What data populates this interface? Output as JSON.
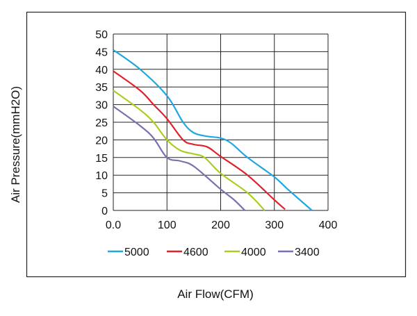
{
  "chart_data": {
    "type": "line",
    "title": "",
    "xlabel": "Air Flow(CFM)",
    "ylabel": "Air Pressure(mmH2O)",
    "xlim": [
      0,
      400
    ],
    "ylim": [
      0,
      50
    ],
    "grid": true,
    "x_ticks": [
      "0.0",
      "100",
      "200",
      "300",
      "400"
    ],
    "x_tick_values": [
      0,
      100,
      200,
      300,
      400
    ],
    "y_ticks": [
      "0",
      "5",
      "10",
      "15",
      "20",
      "25",
      "30",
      "35",
      "40",
      "45",
      "50"
    ],
    "y_tick_values": [
      0,
      5,
      10,
      15,
      20,
      25,
      30,
      35,
      40,
      45,
      50
    ],
    "legend_position": "bottom",
    "series": [
      {
        "name": "5000",
        "color": "#1ea7e1",
        "points": [
          [
            0,
            45.5
          ],
          [
            50,
            40
          ],
          [
            100,
            32.5
          ],
          [
            130,
            25
          ],
          [
            150,
            22
          ],
          [
            175,
            21
          ],
          [
            200,
            20.5
          ],
          [
            220,
            19
          ],
          [
            250,
            15
          ],
          [
            300,
            9.5
          ],
          [
            325,
            6
          ],
          [
            370,
            0
          ]
        ]
      },
      {
        "name": "4600",
        "color": "#e0202a",
        "points": [
          [
            0,
            39.5
          ],
          [
            50,
            34
          ],
          [
            75,
            30
          ],
          [
            100,
            26
          ],
          [
            130,
            20
          ],
          [
            150,
            18.7
          ],
          [
            175,
            18
          ],
          [
            200,
            15.3
          ],
          [
            250,
            10
          ],
          [
            300,
            3
          ],
          [
            320,
            0.3
          ]
        ]
      },
      {
        "name": "4000",
        "color": "#a8cf1f",
        "points": [
          [
            0,
            34
          ],
          [
            50,
            28.5
          ],
          [
            75,
            25
          ],
          [
            100,
            20
          ],
          [
            125,
            17
          ],
          [
            150,
            16
          ],
          [
            170,
            15
          ],
          [
            200,
            10.5
          ],
          [
            250,
            5
          ],
          [
            282,
            0
          ]
        ]
      },
      {
        "name": "3400",
        "color": "#7a6fb0",
        "points": [
          [
            0,
            29.5
          ],
          [
            50,
            24
          ],
          [
            75,
            20.5
          ],
          [
            100,
            15
          ],
          [
            125,
            14
          ],
          [
            150,
            12.5
          ],
          [
            200,
            6
          ],
          [
            225,
            3
          ],
          [
            245,
            0
          ]
        ]
      }
    ]
  }
}
